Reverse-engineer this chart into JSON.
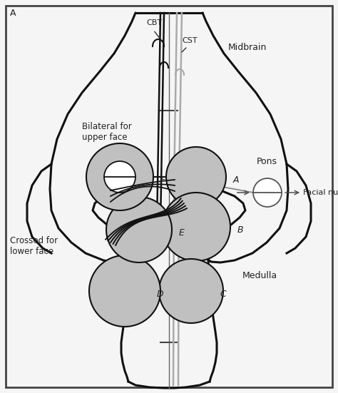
{
  "fig_width": 4.74,
  "fig_height": 5.51,
  "bg_color": "#f5f5f5",
  "border_color": "#222222",
  "body_outline": "#111111",
  "gray_circle_color": "#c0c0c0",
  "nerve_black": "#111111",
  "nerve_gray": "#aaaaaa",
  "text_midbrain": "Midbrain",
  "text_pons": "Pons",
  "text_medulla": "Medulla",
  "text_CBT": "CBT",
  "text_CST": "CST",
  "text_bilateral": "Bilateral for\nupper face",
  "text_crossed": "Crossed for\nlower face",
  "text_facial": "Facial nucleus",
  "corner_label": "A"
}
